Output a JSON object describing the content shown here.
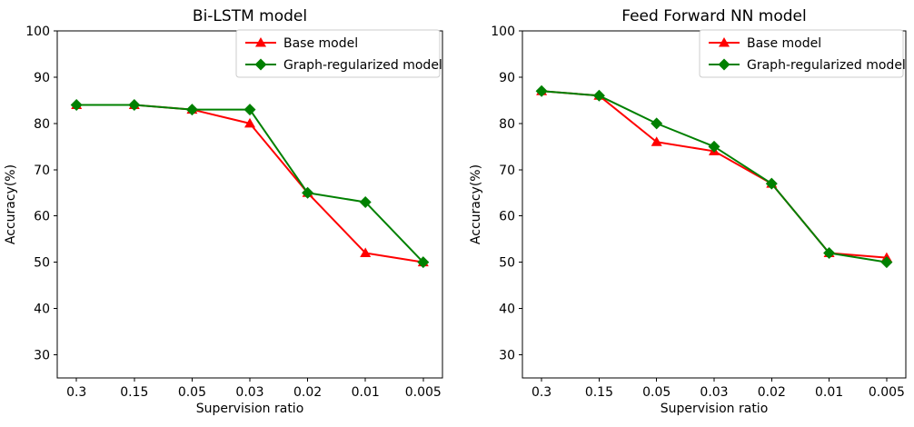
{
  "figure": {
    "background": "#ffffff",
    "text_color": "#000000",
    "spine_color": "#000000",
    "legend_border_color": "#cccccc",
    "legend_background": "#ffffff"
  },
  "chart_data": [
    {
      "type": "line",
      "title": "Bi-LSTM model",
      "xlabel": "Supervision ratio",
      "ylabel": "Accuracy(%)",
      "categories": [
        "0.3",
        "0.15",
        "0.05",
        "0.03",
        "0.02",
        "0.01",
        "0.005"
      ],
      "yticks": [
        100,
        90,
        80,
        70,
        60,
        50,
        40,
        30
      ],
      "ylim": [
        25,
        100
      ],
      "grid": false,
      "legend_position": "upper right",
      "series": [
        {
          "name": "Base model",
          "color": "#ff0000",
          "marker": "triangle",
          "values": [
            84,
            84,
            83,
            80,
            65,
            52,
            50
          ]
        },
        {
          "name": "Graph-regularized model",
          "color": "#008000",
          "marker": "diamond",
          "values": [
            84,
            84,
            83,
            83,
            65,
            63,
            50
          ]
        }
      ]
    },
    {
      "type": "line",
      "title": "Feed Forward NN model",
      "xlabel": "Supervision ratio",
      "ylabel": "Accuracy(%)",
      "categories": [
        "0.3",
        "0.15",
        "0.05",
        "0.03",
        "0.02",
        "0.01",
        "0.005"
      ],
      "yticks": [
        100,
        90,
        80,
        70,
        60,
        50,
        40,
        30
      ],
      "ylim": [
        25,
        100
      ],
      "grid": false,
      "legend_position": "upper right",
      "series": [
        {
          "name": "Base model",
          "color": "#ff0000",
          "marker": "triangle",
          "values": [
            87,
            86,
            76,
            74,
            67,
            52,
            51
          ]
        },
        {
          "name": "Graph-regularized model",
          "color": "#008000",
          "marker": "diamond",
          "values": [
            87,
            86,
            80,
            75,
            67,
            52,
            50
          ]
        }
      ]
    }
  ]
}
